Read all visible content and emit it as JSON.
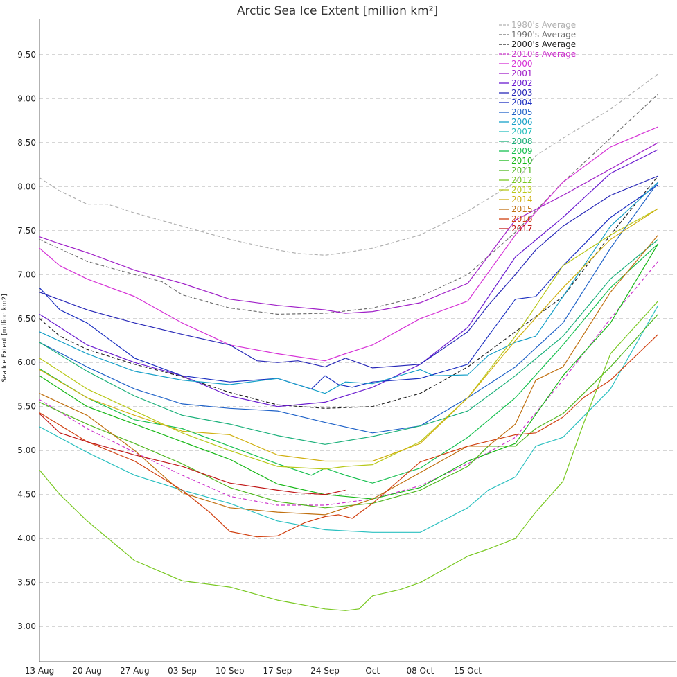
{
  "chart_data": {
    "type": "line",
    "title": "Arctic Sea Ice Extent [million km²]",
    "ylabel": "Sea Ice Extent [million km2]",
    "xlabel": "",
    "x_ticks": [
      "13 Aug",
      "20 Aug",
      "27 Aug",
      "03 Sep",
      "10 Sep",
      "17 Sep",
      "24 Sep",
      "Oct",
      "08 Oct",
      "15 Oct"
    ],
    "x_start": "13 Aug",
    "y_ticks": [
      "3.00",
      "3.50",
      "4.00",
      "4.50",
      "5.00",
      "5.50",
      "6.00",
      "6.50",
      "7.00",
      "7.50",
      "8.00",
      "8.50",
      "9.00",
      "9.50"
    ],
    "ylim": [
      2.6,
      9.9
    ],
    "grid": true,
    "legend_position": "top-right",
    "series": [
      {
        "name": "1980's Average",
        "color": "#b0b0b0",
        "dashed": true,
        "days": [
          0,
          3,
          7,
          10,
          14,
          21,
          28,
          35,
          38,
          42,
          45,
          49,
          56,
          63,
          70,
          73,
          77,
          84,
          91
        ],
        "values": [
          8.1,
          7.95,
          7.8,
          7.8,
          7.7,
          7.55,
          7.4,
          7.28,
          7.24,
          7.22,
          7.25,
          7.3,
          7.45,
          7.72,
          8.05,
          8.35,
          8.55,
          8.88,
          9.28
        ]
      },
      {
        "name": "1990's Average",
        "color": "#707070",
        "dashed": true,
        "days": [
          0,
          7,
          14,
          18,
          21,
          28,
          35,
          42,
          49,
          56,
          63,
          70,
          77,
          84,
          91
        ],
        "values": [
          7.4,
          7.15,
          7.0,
          6.92,
          6.77,
          6.62,
          6.55,
          6.56,
          6.62,
          6.75,
          7.0,
          7.48,
          8.05,
          8.55,
          9.05
        ]
      },
      {
        "name": "2000's Average",
        "color": "#222222",
        "dashed": true,
        "days": [
          0,
          3,
          7,
          14,
          21,
          28,
          35,
          42,
          49,
          56,
          63,
          70,
          77,
          84,
          91
        ],
        "values": [
          6.5,
          6.3,
          6.15,
          5.98,
          5.84,
          5.66,
          5.52,
          5.48,
          5.5,
          5.65,
          5.95,
          6.35,
          6.75,
          7.45,
          8.12
        ]
      },
      {
        "name": "2010's Average",
        "color": "#cc33cc",
        "dashed": true,
        "days": [
          0,
          7,
          14,
          21,
          28,
          35,
          42,
          49,
          56,
          63,
          70,
          77,
          84,
          91
        ],
        "values": [
          5.58,
          5.25,
          4.98,
          4.72,
          4.48,
          4.38,
          4.38,
          4.45,
          4.6,
          4.85,
          5.15,
          5.8,
          6.5,
          7.15
        ]
      },
      {
        "name": "2000",
        "color": "#d632d6",
        "dashed": false,
        "days": [
          0,
          3,
          7,
          14,
          21,
          28,
          35,
          42,
          45,
          49,
          56,
          63,
          70,
          77,
          84,
          91
        ],
        "values": [
          7.3,
          7.1,
          6.95,
          6.75,
          6.45,
          6.2,
          6.1,
          6.02,
          6.1,
          6.2,
          6.5,
          6.7,
          7.45,
          8.05,
          8.45,
          8.68
        ]
      },
      {
        "name": "2001",
        "color": "#a020c8",
        "dashed": false,
        "days": [
          0,
          3,
          7,
          14,
          21,
          28,
          35,
          42,
          45,
          49,
          56,
          63,
          70,
          77,
          84,
          91
        ],
        "values": [
          7.43,
          7.35,
          7.25,
          7.05,
          6.9,
          6.72,
          6.65,
          6.6,
          6.56,
          6.58,
          6.68,
          6.9,
          7.62,
          7.9,
          8.2,
          8.5
        ]
      },
      {
        "name": "2002",
        "color": "#6a1bd0",
        "dashed": false,
        "days": [
          0,
          7,
          14,
          21,
          28,
          35,
          42,
          49,
          56,
          63,
          70,
          77,
          84,
          91
        ],
        "values": [
          6.55,
          6.2,
          6.0,
          5.85,
          5.62,
          5.5,
          5.55,
          5.72,
          5.98,
          6.4,
          7.2,
          7.65,
          8.15,
          8.42
        ]
      },
      {
        "name": "2003",
        "color": "#2929b8",
        "dashed": false,
        "days": [
          0,
          7,
          14,
          21,
          28,
          32,
          35,
          38,
          42,
          45,
          49,
          56,
          63,
          66,
          70,
          73,
          77,
          84,
          91
        ],
        "values": [
          6.8,
          6.6,
          6.45,
          6.32,
          6.2,
          6.02,
          6.0,
          6.02,
          5.95,
          6.05,
          5.94,
          5.98,
          6.35,
          6.65,
          7.0,
          7.28,
          7.55,
          7.9,
          8.12
        ]
      },
      {
        "name": "2004",
        "color": "#1a2ec0",
        "dashed": false,
        "days": [
          0,
          3,
          7,
          14,
          21,
          28,
          35,
          40,
          42,
          44,
          46,
          49,
          56,
          63,
          66,
          70,
          73,
          77,
          84,
          91
        ],
        "values": [
          6.85,
          6.6,
          6.45,
          6.05,
          5.85,
          5.78,
          5.82,
          5.7,
          5.85,
          5.75,
          5.72,
          5.78,
          5.82,
          5.98,
          6.3,
          6.72,
          6.75,
          7.1,
          7.65,
          8.02
        ]
      },
      {
        "name": "2005",
        "color": "#1f62c8",
        "dashed": false,
        "days": [
          0,
          7,
          14,
          21,
          28,
          35,
          42,
          49,
          56,
          63,
          70,
          77,
          84,
          91
        ],
        "values": [
          6.23,
          5.95,
          5.7,
          5.53,
          5.48,
          5.45,
          5.32,
          5.2,
          5.28,
          5.6,
          5.95,
          6.45,
          7.3,
          8.05
        ]
      },
      {
        "name": "2006",
        "color": "#17a0c8",
        "dashed": false,
        "days": [
          0,
          7,
          14,
          21,
          28,
          35,
          42,
          45,
          49,
          56,
          58,
          63,
          66,
          70,
          73,
          77,
          84,
          91
        ],
        "values": [
          6.35,
          6.1,
          5.9,
          5.8,
          5.75,
          5.82,
          5.65,
          5.78,
          5.76,
          5.92,
          5.85,
          5.86,
          6.08,
          6.23,
          6.3,
          6.75,
          7.55,
          8.05
        ]
      },
      {
        "name": "2007",
        "color": "#2bc0c0",
        "dashed": false,
        "days": [
          0,
          7,
          14,
          21,
          28,
          35,
          42,
          49,
          56,
          63,
          66,
          70,
          73,
          77,
          84,
          91
        ],
        "values": [
          5.27,
          4.98,
          4.72,
          4.55,
          4.4,
          4.2,
          4.1,
          4.07,
          4.07,
          4.35,
          4.55,
          4.7,
          5.05,
          5.15,
          5.7,
          6.65
        ]
      },
      {
        "name": "2008",
        "color": "#1ab07a",
        "dashed": false,
        "days": [
          0,
          7,
          14,
          21,
          28,
          35,
          42,
          49,
          56,
          63,
          70,
          77,
          84,
          91
        ],
        "values": [
          6.23,
          5.9,
          5.62,
          5.4,
          5.3,
          5.17,
          5.07,
          5.16,
          5.28,
          5.45,
          5.85,
          6.3,
          6.95,
          7.4
        ]
      },
      {
        "name": "2009",
        "color": "#17c050",
        "dashed": false,
        "days": [
          0,
          7,
          14,
          21,
          28,
          35,
          40,
          42,
          45,
          49,
          56,
          63,
          70,
          77,
          84,
          91
        ],
        "values": [
          5.93,
          5.6,
          5.35,
          5.25,
          5.05,
          4.85,
          4.72,
          4.8,
          4.72,
          4.63,
          4.8,
          5.15,
          5.6,
          6.2,
          6.85,
          7.35
        ]
      },
      {
        "name": "2010",
        "color": "#18b818",
        "dashed": false,
        "days": [
          0,
          7,
          14,
          21,
          28,
          35,
          42,
          49,
          56,
          63,
          70,
          77,
          84,
          91
        ],
        "values": [
          5.85,
          5.5,
          5.3,
          5.1,
          4.9,
          4.62,
          4.5,
          4.45,
          4.58,
          4.88,
          5.08,
          5.85,
          6.45,
          7.35
        ]
      },
      {
        "name": "2011",
        "color": "#50b820",
        "dashed": false,
        "days": [
          0,
          7,
          14,
          21,
          28,
          35,
          42,
          49,
          56,
          63,
          66,
          70,
          73,
          77,
          84,
          91
        ],
        "values": [
          5.55,
          5.3,
          5.08,
          4.85,
          4.58,
          4.42,
          4.35,
          4.4,
          4.55,
          4.82,
          5.05,
          5.05,
          5.25,
          5.42,
          5.95,
          6.55
        ]
      },
      {
        "name": "2012",
        "color": "#78c820",
        "dashed": false,
        "days": [
          0,
          3,
          7,
          14,
          21,
          28,
          35,
          42,
          45,
          47,
          49,
          53,
          56,
          63,
          66,
          70,
          73,
          77,
          80,
          84,
          91
        ],
        "values": [
          4.78,
          4.5,
          4.2,
          3.75,
          3.52,
          3.45,
          3.3,
          3.2,
          3.18,
          3.2,
          3.35,
          3.42,
          3.5,
          3.8,
          3.88,
          4.0,
          4.3,
          4.65,
          5.3,
          6.1,
          6.7
        ]
      },
      {
        "name": "2013",
        "color": "#b8c818",
        "dashed": false,
        "days": [
          0,
          7,
          14,
          21,
          28,
          35,
          42,
          45,
          49,
          56,
          63,
          70,
          77,
          84,
          91
        ],
        "values": [
          6.05,
          5.7,
          5.45,
          5.2,
          5.0,
          4.82,
          4.79,
          4.82,
          4.84,
          5.1,
          5.6,
          6.3,
          7.1,
          7.45,
          7.75
        ]
      },
      {
        "name": "2014",
        "color": "#d0b010",
        "dashed": false,
        "days": [
          0,
          7,
          14,
          21,
          28,
          35,
          42,
          49,
          56,
          63,
          70,
          77,
          84,
          91
        ],
        "values": [
          5.92,
          5.6,
          5.4,
          5.22,
          5.18,
          4.95,
          4.88,
          4.88,
          5.08,
          5.6,
          6.25,
          6.85,
          7.4,
          7.75
        ]
      },
      {
        "name": "2015",
        "color": "#c07010",
        "dashed": false,
        "days": [
          0,
          7,
          14,
          21,
          28,
          35,
          42,
          49,
          56,
          63,
          66,
          70,
          73,
          77,
          84,
          91
        ],
        "values": [
          5.65,
          5.4,
          5.0,
          4.52,
          4.35,
          4.3,
          4.27,
          4.45,
          4.75,
          5.05,
          5.05,
          5.3,
          5.8,
          5.95,
          6.8,
          7.45
        ]
      },
      {
        "name": "2016",
        "color": "#d04010",
        "dashed": false,
        "days": [
          0,
          7,
          14,
          21,
          25,
          28,
          32,
          35,
          39,
          42,
          44,
          46,
          49,
          56,
          63,
          70,
          73,
          77,
          80,
          84,
          91
        ],
        "values": [
          5.43,
          5.1,
          4.88,
          4.55,
          4.3,
          4.08,
          4.02,
          4.03,
          4.18,
          4.25,
          4.27,
          4.23,
          4.4,
          4.87,
          5.05,
          5.18,
          5.2,
          5.38,
          5.6,
          5.8,
          6.32
        ]
      },
      {
        "name": "2017",
        "color": "#c01818",
        "dashed": false,
        "days": [
          0,
          3,
          7,
          14,
          21,
          28,
          35,
          38,
          42,
          45
        ],
        "values": [
          5.42,
          5.2,
          5.1,
          4.95,
          4.82,
          4.63,
          4.55,
          4.52,
          4.5,
          4.55
        ]
      }
    ]
  }
}
